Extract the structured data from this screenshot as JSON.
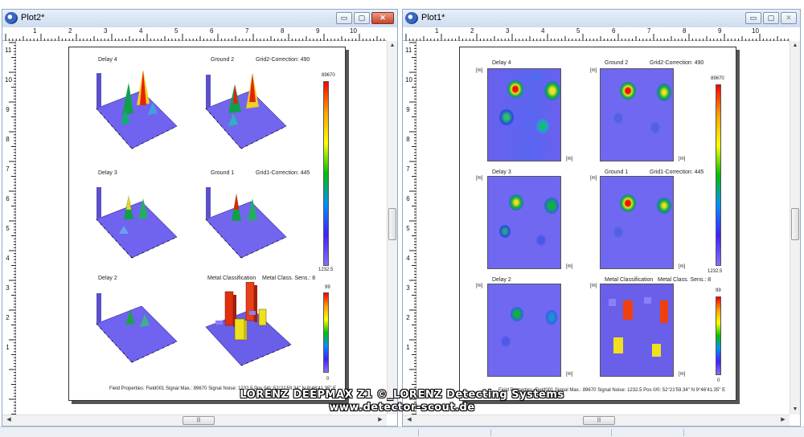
{
  "windows": {
    "left_title": "Plot2*",
    "right_title": "Plot1*",
    "minimize_glyph": "▭",
    "maximize_glyph": "▢",
    "close_glyph": "✕",
    "scroll_up": "▲",
    "scroll_down": "▼",
    "scroll_left": "◀",
    "scroll_right": "▶",
    "scroll_grip": "|||",
    "ruler_h_numbers": [
      "1",
      "2",
      "3",
      "4",
      "5",
      "6",
      "7",
      "8",
      "9",
      "10"
    ],
    "ruler_v_numbers": [
      "11",
      "10",
      "9",
      "8",
      "7",
      "6",
      "5",
      "4",
      "3",
      "2",
      "1"
    ]
  },
  "sheet": {
    "panels": [
      {
        "title": "Delay 4",
        "kind": "surface"
      },
      {
        "title": "Ground 2",
        "subtitle": "Grid2-Correction: 490",
        "kind": "surface"
      },
      {
        "title": "Delay 3",
        "kind": "surface"
      },
      {
        "title": "Ground 1",
        "subtitle": "Grid1-Correction: 445",
        "kind": "surface"
      },
      {
        "title": "Delay 2",
        "kind": "surface"
      },
      {
        "title": "Metal Classification",
        "subtitle": "Metal Class. Sens.: 8",
        "kind": "classification"
      }
    ],
    "scale_signal": {
      "max": "89670",
      "min": "1232.5"
    },
    "scale_class": {
      "max": "99",
      "min": "0"
    },
    "footer": "Field Properties: Field001  Signal Max.:  89670  Signal Noise:  1232.5  Pos 0/0: 52°21'59.34'' N  9°46'41.35'' E",
    "unit": "[m]"
  },
  "watermark": {
    "line1": "LORENZ DEEPMAX Z1 ©_LORENZ Detecting Systems",
    "line2": "www.detector-scout.de"
  },
  "colors": {
    "field": "#6f63f0",
    "hot": "#e82010",
    "warm": "#f0e020",
    "mid": "#10b040",
    "window_border": "#8fa9c9"
  }
}
